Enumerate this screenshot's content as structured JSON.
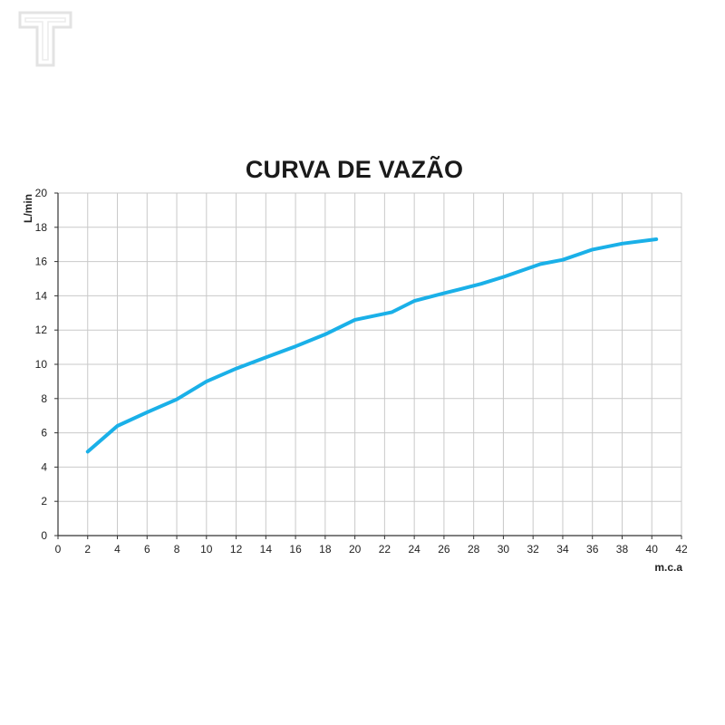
{
  "logo": {
    "icon": "letter-t-logo-icon",
    "color": "#e3e3e3"
  },
  "chart_data": {
    "type": "line",
    "title": "CURVA DE VAZÃO",
    "xlabel": "m.c.a",
    "ylabel": "L/min",
    "xlim": [
      0,
      42
    ],
    "ylim": [
      0,
      20
    ],
    "x_ticks": [
      0,
      2,
      4,
      6,
      8,
      10,
      12,
      14,
      16,
      18,
      20,
      22,
      24,
      26,
      28,
      30,
      32,
      34,
      36,
      38,
      40,
      42
    ],
    "y_ticks": [
      0,
      2,
      4,
      6,
      8,
      10,
      12,
      14,
      16,
      18,
      20
    ],
    "grid": true,
    "series": [
      {
        "color": "#1ab0e8",
        "x": [
          2,
          4,
          6,
          8,
          10,
          12,
          14,
          16,
          18,
          20,
          22.5,
          24,
          26,
          28.5,
          30,
          32.5,
          34,
          36,
          38,
          40.3
        ],
        "y": [
          4.9,
          6.4,
          7.2,
          7.95,
          9.0,
          9.75,
          10.4,
          11.05,
          11.75,
          12.6,
          13.05,
          13.7,
          14.15,
          14.7,
          15.1,
          15.85,
          16.1,
          16.7,
          17.05,
          17.3
        ]
      }
    ]
  }
}
